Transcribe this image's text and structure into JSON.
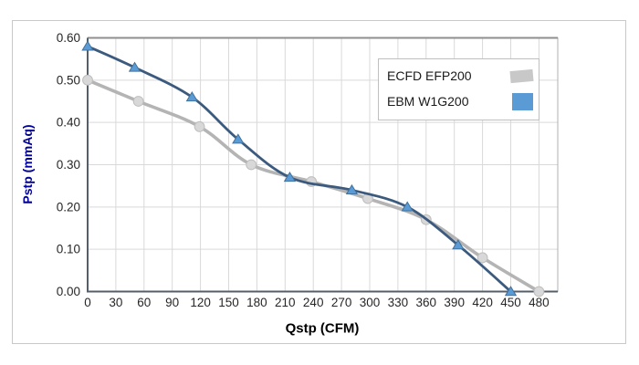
{
  "window": {
    "background": "#ffffff",
    "frame_border_color": "#c9c9c9"
  },
  "chart_data": {
    "type": "line",
    "title": "",
    "xlabel": "Qstp (CFM)",
    "ylabel": "Pstp (mmAq)",
    "xlim": [
      0,
      500
    ],
    "ylim": [
      0,
      0.6
    ],
    "x_ticks": [
      0,
      30,
      60,
      90,
      120,
      150,
      180,
      210,
      240,
      270,
      300,
      330,
      360,
      390,
      420,
      450,
      480
    ],
    "y_ticks": [
      0,
      0.1,
      0.2,
      0.3,
      0.4,
      0.5,
      0.6
    ],
    "y_tick_decimals": 2,
    "grid": true,
    "legend_position": "inside-top-right",
    "series": [
      {
        "name": "ECFD EFP200",
        "line_color": "#b4b4b4",
        "marker": "circle",
        "marker_fill": "#d8d8d8",
        "marker_stroke": "#bdbdbd",
        "points": [
          [
            0,
            0.5
          ],
          [
            54,
            0.45
          ],
          [
            119,
            0.39
          ],
          [
            174,
            0.3
          ],
          [
            238,
            0.26
          ],
          [
            298,
            0.22
          ],
          [
            360,
            0.17
          ],
          [
            420,
            0.08
          ],
          [
            480,
            0.0
          ]
        ]
      },
      {
        "name": "EBM W1G200",
        "line_color": "#3b5a7e",
        "marker": "triangle",
        "marker_fill": "#5b9bd5",
        "marker_stroke": "#41719c",
        "points": [
          [
            0,
            0.58
          ],
          [
            50,
            0.53
          ],
          [
            111,
            0.46
          ],
          [
            160,
            0.36
          ],
          [
            215,
            0.27
          ],
          [
            281,
            0.24
          ],
          [
            340,
            0.2
          ],
          [
            394,
            0.11
          ],
          [
            450,
            0.0
          ]
        ]
      }
    ],
    "colors": {
      "grid": "#d9d9d9",
      "plot_border": "#b0b0b0",
      "plot_border_top": "#8f8f8f",
      "axis_line": "#555f6b",
      "tick_label": "#262626",
      "xlabel_color": "#000000",
      "ylabel_color": "#00009b"
    }
  },
  "legend": {
    "items": [
      {
        "label": "ECFD EFP200",
        "swatch_color": "#c8c8c8"
      },
      {
        "label": "EBM W1G200",
        "swatch_color": "#5b9bd5"
      }
    ]
  }
}
